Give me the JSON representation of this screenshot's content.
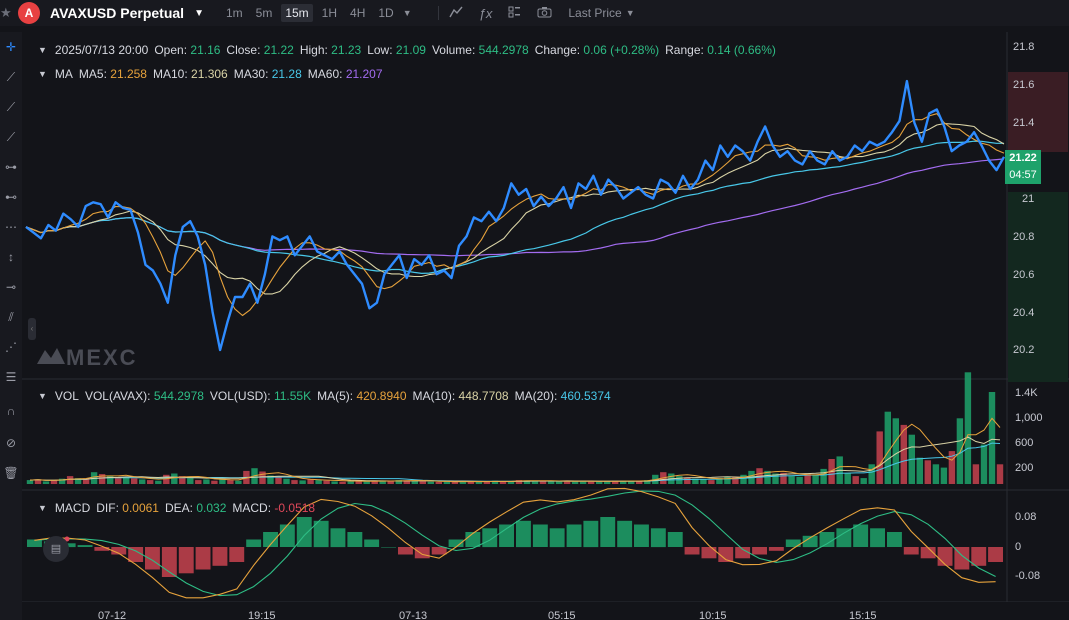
{
  "toolbar": {
    "symbol": "AVAXUSD Perpetual",
    "timeframes": [
      "1m",
      "5m",
      "15m",
      "1H",
      "4H",
      "1D"
    ],
    "active_timeframe": "15m",
    "price_type": "Last Price",
    "logo_letter": "A"
  },
  "ohlc": {
    "date": "2025/07/13 20:00",
    "open_label": "Open:",
    "open": "21.16",
    "close_label": "Close:",
    "close": "21.22",
    "high_label": "High:",
    "high": "21.23",
    "low_label": "Low:",
    "low": "21.09",
    "volume_label": "Volume:",
    "volume": "544.2978",
    "change_label": "Change:",
    "change": "0.06 (+0.28%)",
    "range_label": "Range:",
    "range": "0.14 (0.66%)"
  },
  "ma": {
    "label": "MA",
    "ma5_label": "MA5:",
    "ma5": "21.258",
    "ma10_label": "MA10:",
    "ma10": "21.306",
    "ma30_label": "MA30:",
    "ma30": "21.28",
    "ma60_label": "MA60:",
    "ma60": "21.207"
  },
  "vol": {
    "label": "VOL",
    "avax_label": "VOL(AVAX):",
    "avax": "544.2978",
    "usd_label": "VOL(USD):",
    "usd": "11.55K",
    "ma5_label": "MA(5):",
    "ma5": "420.8940",
    "ma10_label": "MA(10):",
    "ma10": "448.7708",
    "ma20_label": "MA(20):",
    "ma20": "460.5374"
  },
  "macd": {
    "label": "MACD",
    "dif_label": "DIF:",
    "dif": "0.0061",
    "dea_label": "DEA:",
    "dea": "0.032",
    "macd_label": "MACD:",
    "macd": "-0.0518"
  },
  "price_axis": [
    "21.8",
    "21.6",
    "21.4",
    "21.2",
    "21",
    "20.8",
    "20.6",
    "20.4",
    "20.2"
  ],
  "vol_axis": [
    "1.4K",
    "1,000",
    "600",
    "200"
  ],
  "macd_axis": [
    "0.08",
    "0",
    "-0.08"
  ],
  "time_axis": [
    "07-12",
    "19:15",
    "07-13",
    "05:15",
    "10:15",
    "15:15"
  ],
  "last_price": "21.22",
  "countdown": "04:57",
  "watermark": "MEXC",
  "colors": {
    "up": "#1ea26b",
    "down": "#c7424f",
    "price_line": "#2f8cff",
    "ma5": "#e6a23c",
    "ma10": "#d9d3a6",
    "ma30": "#48c7e8",
    "ma60": "#a36cf0"
  },
  "chart_data": {
    "type": "line",
    "price": [
      20.85,
      20.82,
      20.79,
      20.86,
      20.83,
      20.92,
      20.89,
      20.85,
      20.96,
      20.98,
      20.97,
      20.9,
      20.98,
      20.95,
      20.94,
      20.82,
      20.65,
      20.62,
      20.55,
      20.45,
      20.7,
      20.85,
      20.88,
      20.8,
      20.65,
      20.4,
      20.2,
      20.35,
      20.48,
      20.48,
      20.55,
      20.45,
      20.6,
      20.8,
      20.78,
      20.8,
      20.7,
      20.75,
      20.8,
      20.72,
      20.7,
      20.68,
      20.72,
      20.65,
      20.6,
      20.55,
      20.42,
      20.45,
      20.6,
      20.65,
      20.7,
      20.58,
      20.68,
      20.65,
      20.7,
      20.6,
      20.62,
      20.58,
      20.75,
      20.8,
      20.9,
      20.88,
      20.93,
      20.88,
      20.95,
      21.08,
      21.02,
      21.05,
      20.96,
      21.01,
      20.96,
      21.0,
      21.06,
      20.95,
      21.08,
      21.05,
      21.12,
      21.02,
      21.1,
      21.06,
      21.0,
      21.03,
      21.06,
      21.02,
      21.0,
      21.1,
      21.08,
      21.03,
      21.12,
      21.05,
      21.1,
      21.2,
      21.15,
      21.28,
      21.22,
      21.28,
      21.25,
      21.2,
      21.3,
      21.38,
      21.28,
      21.22,
      21.25,
      21.2,
      21.18,
      21.25,
      21.2,
      21.18,
      21.25,
      21.2,
      21.22,
      21.28,
      21.25,
      21.3,
      21.28,
      21.3,
      21.35,
      21.41,
      21.62,
      21.4,
      21.3,
      21.45,
      21.47,
      21.38,
      21.25,
      21.28,
      21.3,
      21.35,
      21.28,
      21.2,
      21.15,
      21.22
    ],
    "volume_bars": [
      60,
      70,
      40,
      55,
      80,
      120,
      90,
      70,
      180,
      150,
      130,
      90,
      110,
      85,
      70,
      60,
      50,
      140,
      160,
      120,
      90,
      60,
      70,
      50,
      80,
      60,
      50,
      200,
      240,
      190,
      130,
      100,
      80,
      60,
      55,
      70,
      60,
      50,
      40,
      35,
      45,
      50,
      40,
      40,
      45,
      50,
      60,
      55,
      50,
      40,
      35,
      30,
      40,
      30,
      45,
      40,
      35,
      30,
      50,
      45,
      40,
      60,
      55,
      50,
      45,
      40,
      38,
      42,
      40,
      45,
      38,
      40,
      42,
      48,
      50,
      45,
      40,
      60,
      140,
      180,
      160,
      120,
      100,
      80,
      70,
      60,
      90,
      110,
      100,
      140,
      200,
      240,
      200,
      160,
      170,
      120,
      110,
      150,
      140,
      230,
      380,
      420,
      160,
      120,
      90,
      300,
      800,
      1100,
      1000,
      900,
      750,
      400,
      360,
      300,
      250,
      500,
      1000,
      1700,
      300,
      600,
      1400,
      300
    ],
    "macd_hist": [
      0.02,
      0.015,
      0.01,
      0.005,
      -0.01,
      -0.02,
      -0.04,
      -0.06,
      -0.08,
      -0.07,
      -0.06,
      -0.05,
      -0.04,
      0.02,
      0.04,
      0.06,
      0.08,
      0.07,
      0.05,
      0.04,
      0.02,
      0.0,
      -0.02,
      -0.03,
      -0.02,
      0.02,
      0.04,
      0.05,
      0.06,
      0.07,
      0.06,
      0.05,
      0.06,
      0.07,
      0.08,
      0.07,
      0.06,
      0.05,
      0.04,
      -0.02,
      -0.03,
      -0.04,
      -0.03,
      -0.02,
      -0.01,
      0.02,
      0.03,
      0.04,
      0.05,
      0.06,
      0.05,
      0.04,
      -0.02,
      -0.03,
      -0.05,
      -0.06,
      -0.05,
      -0.04
    ]
  }
}
